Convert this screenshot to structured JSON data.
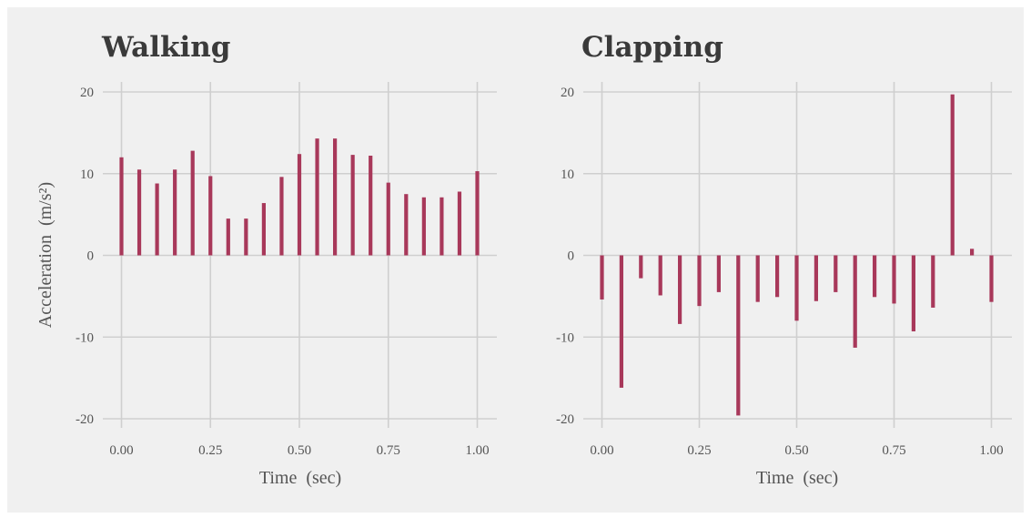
{
  "colors": {
    "figure_background": "#f0f0f0",
    "grid": "#cfcfcf",
    "bar": "#a8385a",
    "text": "#555555",
    "title": "#3a3a3a"
  },
  "chart_data": [
    {
      "type": "bar",
      "title": "Walking",
      "xlabel": "Time  (sec)",
      "ylabel": "Acceleration  (m/s²)",
      "x": [
        0.0,
        0.05,
        0.1,
        0.15,
        0.2,
        0.25,
        0.3,
        0.35,
        0.4,
        0.45,
        0.5,
        0.55,
        0.6,
        0.65,
        0.7,
        0.75,
        0.8,
        0.85,
        0.9,
        0.95,
        1.0
      ],
      "values": [
        12.0,
        10.5,
        8.8,
        10.5,
        12.8,
        9.7,
        4.5,
        4.5,
        6.4,
        9.6,
        12.4,
        14.3,
        14.3,
        12.3,
        12.2,
        8.9,
        7.5,
        7.1,
        7.1,
        7.8,
        10.3
      ],
      "xticks": [
        "0.00",
        "0.25",
        "0.50",
        "0.75",
        "1.00"
      ],
      "yticks": [
        "20",
        "10",
        "0",
        "-10",
        "-20"
      ],
      "xlim": [
        -0.06,
        1.06
      ],
      "ylim": [
        -20,
        20
      ],
      "grid": true
    },
    {
      "type": "bar",
      "title": "Clapping",
      "xlabel": "Time  (sec)",
      "ylabel": "",
      "x": [
        0.0,
        0.05,
        0.1,
        0.15,
        0.2,
        0.25,
        0.3,
        0.35,
        0.4,
        0.45,
        0.5,
        0.55,
        0.6,
        0.65,
        0.7,
        0.75,
        0.8,
        0.85,
        0.9,
        0.95,
        1.0
      ],
      "values": [
        -5.4,
        -16.2,
        -2.8,
        -4.9,
        -8.4,
        -6.2,
        -4.5,
        -19.6,
        -5.7,
        -5.1,
        -8.0,
        -5.6,
        -4.5,
        -11.3,
        -5.1,
        -5.9,
        -9.3,
        -6.4,
        19.7,
        0.8,
        -5.7
      ],
      "xticks": [
        "0.00",
        "0.25",
        "0.50",
        "0.75",
        "1.00"
      ],
      "yticks": [
        "20",
        "10",
        "0",
        "-10",
        "-20"
      ],
      "xlim": [
        -0.06,
        1.06
      ],
      "ylim": [
        -20,
        20
      ],
      "grid": true
    }
  ]
}
